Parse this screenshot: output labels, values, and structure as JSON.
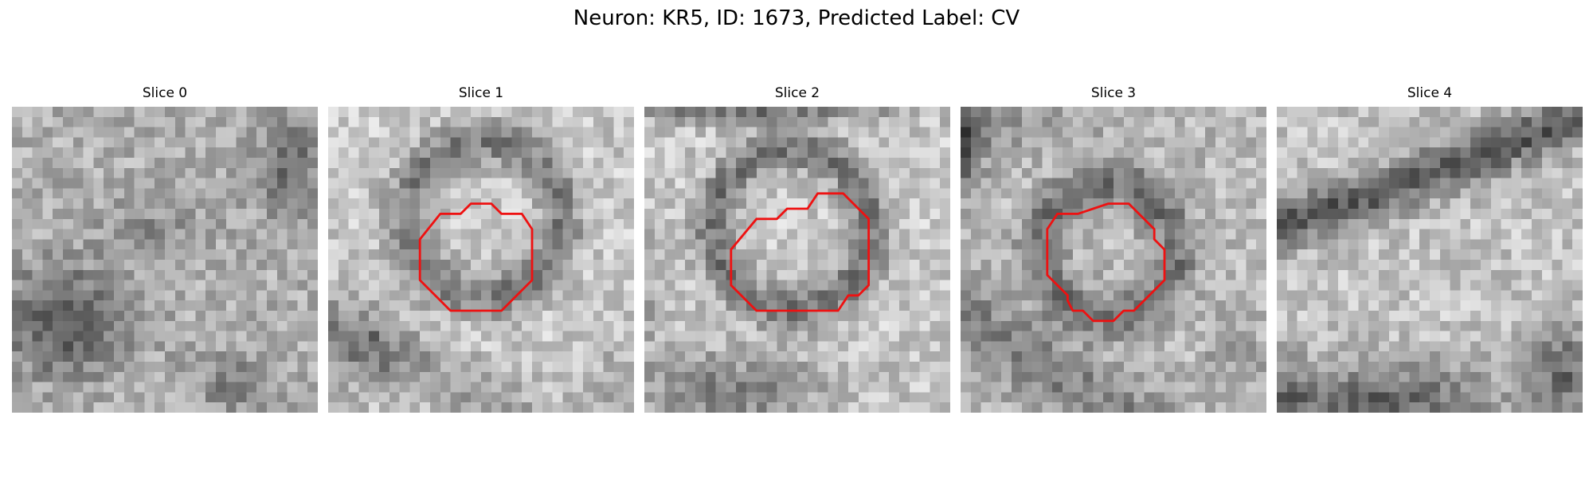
{
  "figure": {
    "title": "Neuron: KR5, ID: 1673, Predicted Label: CV",
    "contour_color": "#ee1111"
  },
  "panels": [
    {
      "title": "Slice 0",
      "has_contour": false
    },
    {
      "title": "Slice 1",
      "has_contour": true
    },
    {
      "title": "Slice 2",
      "has_contour": true
    },
    {
      "title": "Slice 3",
      "has_contour": true
    },
    {
      "title": "Slice 4",
      "has_contour": false
    }
  ]
}
